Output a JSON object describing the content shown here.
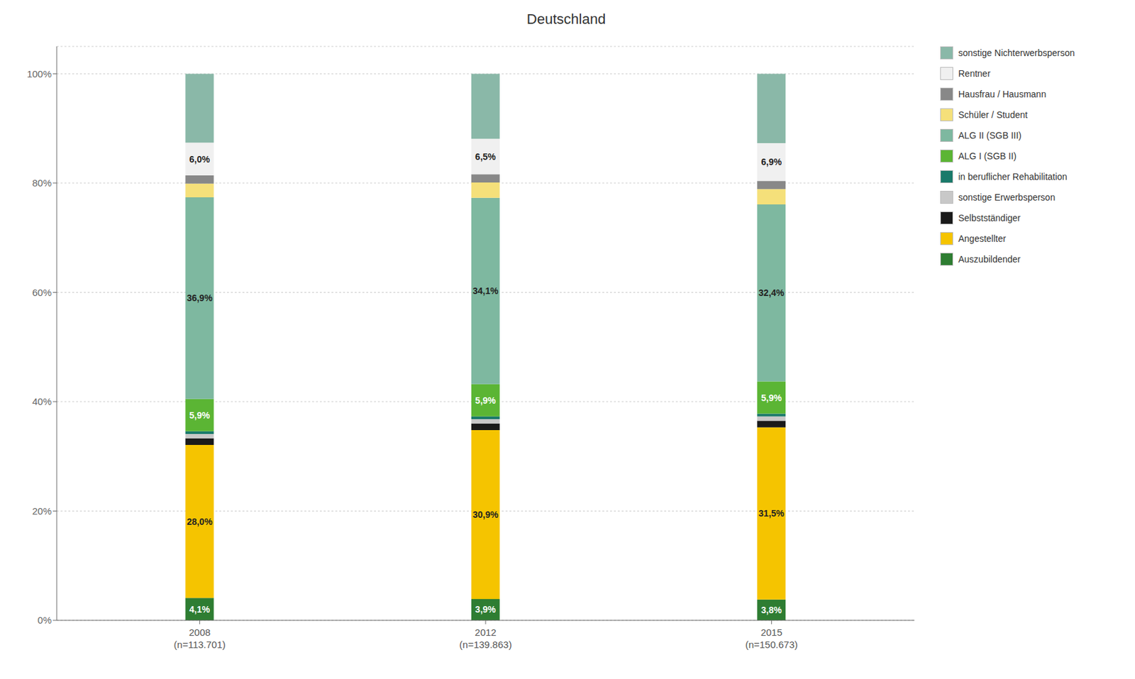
{
  "chart_data": {
    "type": "bar",
    "title": "Deutschland",
    "stacked": true,
    "grid": true,
    "legend": "right",
    "categories": [
      "2008\n(n=113.701)",
      "2012\n(n=139.863)",
      "2015\n(n=150.673)"
    ],
    "series": [
      {
        "name": "Auszubildender",
        "color": "#2e7d32",
        "values": [
          4.1,
          3.9,
          3.8
        ],
        "value_labels": [
          "4,1%",
          "3,9%",
          "3,8%"
        ]
      },
      {
        "name": "Angestellter",
        "color": "#f5c400",
        "values": [
          28.0,
          30.9,
          31.5
        ],
        "value_labels": [
          "28,0%",
          "30,9%",
          "31,5%"
        ]
      },
      {
        "name": "Selbstständiger",
        "color": "#1a1a1a",
        "values": [
          1.2,
          1.2,
          1.2
        ]
      },
      {
        "name": "sonstige Erwerbsperson",
        "color": "#c8c8c8",
        "values": [
          0.8,
          0.8,
          0.8
        ]
      },
      {
        "name": "in beruflicher Rehabilitation",
        "color": "#1a7a6a",
        "values": [
          0.5,
          0.5,
          0.5
        ]
      },
      {
        "name": "ALG I (SGB II)",
        "color": "#5bb534",
        "values": [
          5.9,
          5.9,
          5.9
        ],
        "value_labels": [
          "5,9%",
          "5,9%",
          "5,9%"
        ]
      },
      {
        "name": "ALG II (SGB III)",
        "color": "#7eb8a0",
        "values": [
          36.9,
          34.1,
          32.4
        ],
        "value_labels": [
          "36,9%",
          "34,1%",
          "32,4%"
        ]
      },
      {
        "name": "Schüler / Student",
        "color": "#f5e07a",
        "values": [
          2.5,
          2.8,
          2.8
        ]
      },
      {
        "name": "Hausfrau / Hausmann",
        "color": "#888888",
        "values": [
          1.5,
          1.5,
          1.5
        ]
      },
      {
        "name": "Rentner",
        "color": "#f0f0f0",
        "values": [
          6.0,
          6.5,
          6.9
        ],
        "value_labels": [
          "6,0%",
          "6,5%",
          "6,9%"
        ]
      },
      {
        "name": "sonstige Nichterwerbsperson",
        "color": "#8ab8a8",
        "values": [
          12.6,
          11.9,
          12.7
        ]
      }
    ],
    "ylim": [
      0,
      105
    ],
    "yticks": [
      {
        "value": 0,
        "label": "0%"
      },
      {
        "value": 20,
        "label": "20%"
      },
      {
        "value": 40,
        "label": "40%"
      },
      {
        "value": 60,
        "label": "60%"
      },
      {
        "value": 80,
        "label": "80%"
      },
      {
        "value": 100,
        "label": "100%"
      }
    ]
  }
}
